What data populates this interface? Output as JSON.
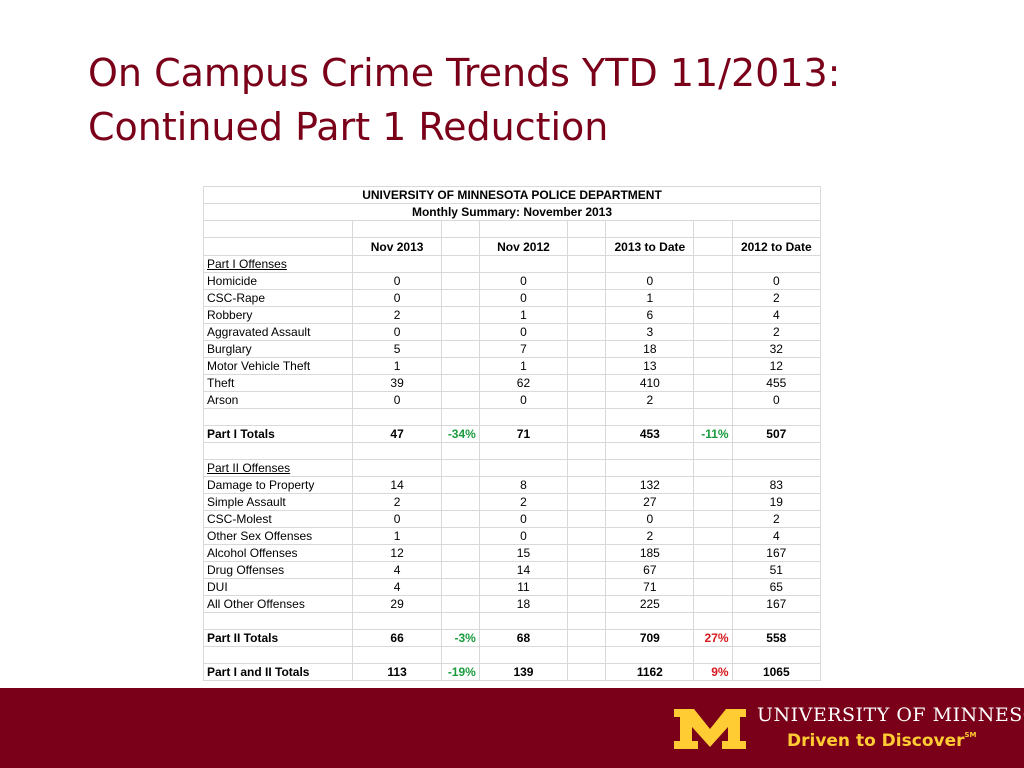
{
  "slide": {
    "title_line1": "On Campus Crime Trends YTD 11/2013:",
    "title_line2": "Continued Part 1 Reduction"
  },
  "table": {
    "header1": "UNIVERSITY OF MINNESOTA POLICE DEPARTMENT",
    "header2": "Monthly Summary: November 2013",
    "columns": [
      "Nov 2013",
      "Nov 2012",
      "2013 to Date",
      "2012 to Date"
    ],
    "part1_label": "Part I Offenses",
    "part1_rows": [
      {
        "label": "Homicide",
        "nov2013": "0",
        "nov2012": "0",
        "ytd2013": "0",
        "ytd2012": "0"
      },
      {
        "label": "CSC-Rape",
        "nov2013": "0",
        "nov2012": "0",
        "ytd2013": "1",
        "ytd2012": "2"
      },
      {
        "label": "Robbery",
        "nov2013": "2",
        "nov2012": "1",
        "ytd2013": "6",
        "ytd2012": "4"
      },
      {
        "label": "Aggravated Assault",
        "nov2013": "0",
        "nov2012": "0",
        "ytd2013": "3",
        "ytd2012": "2"
      },
      {
        "label": "Burglary",
        "nov2013": "5",
        "nov2012": "7",
        "ytd2013": "18",
        "ytd2012": "32"
      },
      {
        "label": "Motor Vehicle Theft",
        "nov2013": "1",
        "nov2012": "1",
        "ytd2013": "13",
        "ytd2012": "12"
      },
      {
        "label": "Theft",
        "nov2013": "39",
        "nov2012": "62",
        "ytd2013": "410",
        "ytd2012": "455"
      },
      {
        "label": "Arson",
        "nov2013": "0",
        "nov2012": "0",
        "ytd2013": "2",
        "ytd2012": "0"
      }
    ],
    "part1_totals": {
      "label": "Part I Totals",
      "nov2013": "47",
      "pct_month": "-34%",
      "nov2012": "71",
      "ytd2013": "453",
      "pct_ytd": "-11%",
      "ytd2012": "507"
    },
    "part2_label": "Part II Offenses",
    "part2_rows": [
      {
        "label": "Damage to Property",
        "nov2013": "14",
        "nov2012": "8",
        "ytd2013": "132",
        "ytd2012": "83"
      },
      {
        "label": "Simple Assault",
        "nov2013": "2",
        "nov2012": "2",
        "ytd2013": "27",
        "ytd2012": "19"
      },
      {
        "label": "CSC-Molest",
        "nov2013": "0",
        "nov2012": "0",
        "ytd2013": "0",
        "ytd2012": "2"
      },
      {
        "label": "Other Sex Offenses",
        "nov2013": "1",
        "nov2012": "0",
        "ytd2013": "2",
        "ytd2012": "4"
      },
      {
        "label": "Alcohol Offenses",
        "nov2013": "12",
        "nov2012": "15",
        "ytd2013": "185",
        "ytd2012": "167"
      },
      {
        "label": "Drug Offenses",
        "nov2013": "4",
        "nov2012": "14",
        "ytd2013": "67",
        "ytd2012": "51"
      },
      {
        "label": "DUI",
        "nov2013": "4",
        "nov2012": "11",
        "ytd2013": "71",
        "ytd2012": "65"
      },
      {
        "label": "All Other Offenses",
        "nov2013": "29",
        "nov2012": "18",
        "ytd2013": "225",
        "ytd2012": "167"
      }
    ],
    "part2_totals": {
      "label": "Part II Totals",
      "nov2013": "66",
      "pct_month": "-3%",
      "nov2012": "68",
      "ytd2013": "709",
      "pct_ytd": "27%",
      "ytd2012": "558"
    },
    "grand_totals": {
      "label": "Part I and II Totals",
      "nov2013": "113",
      "pct_month": "-19%",
      "nov2012": "139",
      "ytd2013": "1162",
      "pct_ytd": "9%",
      "ytd2012": "1065"
    }
  },
  "footer": {
    "university_name": "UNIVERSITY OF MINNESOTA",
    "tagline": "Driven to Discover",
    "tagline_mark": "SM",
    "logo_icon": "block-m-logo-icon",
    "colors": {
      "maroon": "#7a0019",
      "gold": "#ffcc33",
      "negative": "#1a9c3e",
      "positive": "#d7191c"
    }
  }
}
